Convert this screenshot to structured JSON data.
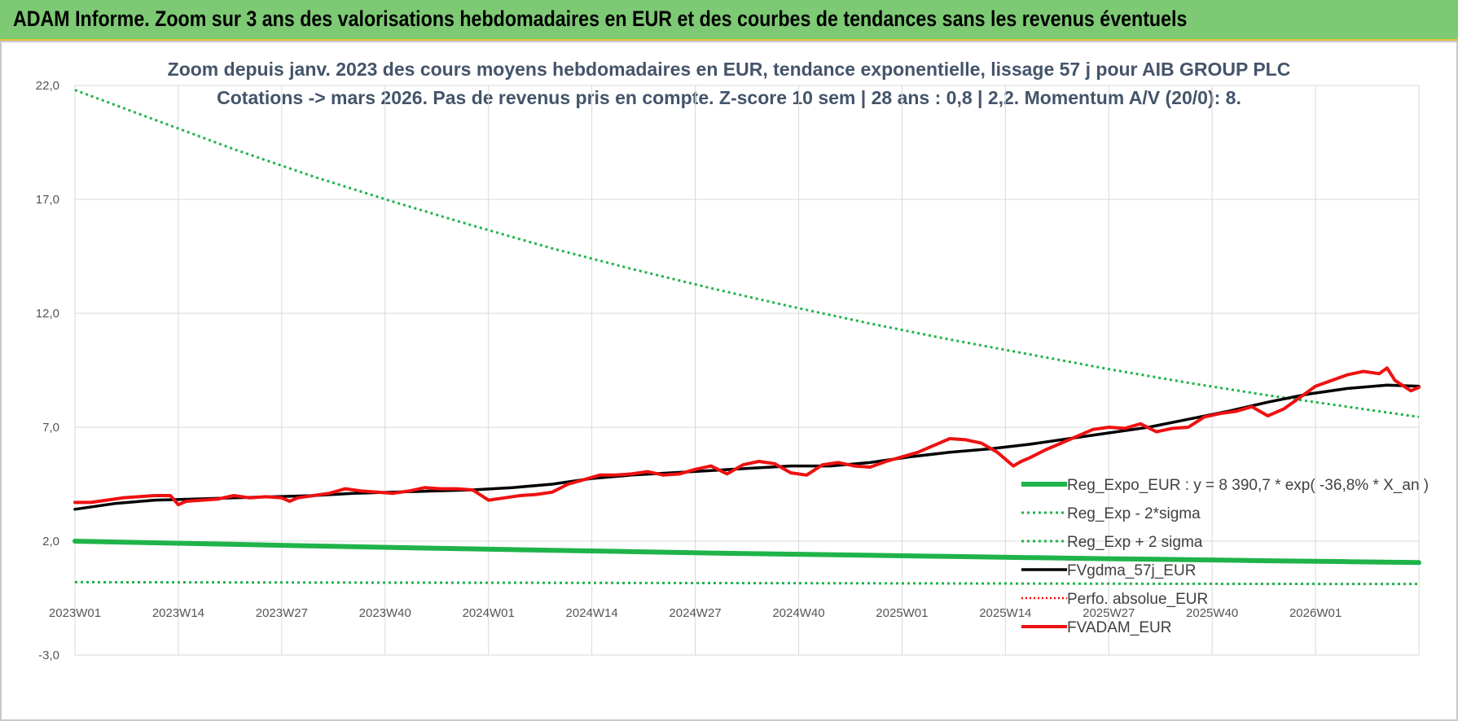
{
  "banner": {
    "title": "ADAM Informe. Zoom sur 3 ans des valorisations hebdomadaires en EUR et des courbes de tendances sans les revenus éventuels"
  },
  "colors": {
    "banner_bg": "#7dc974",
    "reg_expo": "#1fb34a",
    "sigma_bands": "#1fb34a",
    "fvgdma": "#000000",
    "perfo": "#ff0000",
    "fvadam": "#ee1111"
  },
  "chart_data": {
    "type": "line",
    "title": [
      "Zoom depuis janv. 2023 des cours moyens hebdomadaires en EUR, tendance exponentielle, lissage 57 j pour AIB GROUP PLC",
      "Cotations -> mars 2026. Pas de revenus pris en compte. Z-score 10 sem | 28 ans : 0,8 | 2,2. Momentum A/V (20/0): 8."
    ],
    "xlabel": "",
    "ylabel": "",
    "ylim": [
      -3,
      22
    ],
    "yticks": [
      22,
      17,
      12,
      7,
      2,
      -3
    ],
    "ytick_labels": [
      "22,0",
      "17,0",
      "12,0",
      "7,0",
      "2,0",
      "-3,0"
    ],
    "x_index_range": [
      0,
      169
    ],
    "xticks": [
      0,
      13,
      26,
      39,
      52,
      65,
      78,
      91,
      104,
      117,
      130,
      143,
      156
    ],
    "xtick_labels": [
      "2023W01",
      "2023W14",
      "2023W27",
      "2023W40",
      "2024W01",
      "2024W14",
      "2024W27",
      "2024W40",
      "2025W01",
      "2025W14",
      "2025W27",
      "2025W40",
      "2026W01"
    ],
    "gridlines": true,
    "legend_position": "right",
    "series": [
      {
        "name": "Reg_Expo_EUR : y = 8 390,7 * exp( -36,8% *  X_an )",
        "style": "solid-thick",
        "x": [
          0,
          10,
          20,
          30,
          40,
          50,
          60,
          70,
          80,
          90,
          100,
          110,
          120,
          130,
          140,
          150,
          160,
          169
        ],
        "values": [
          2.0,
          1.93,
          1.86,
          1.79,
          1.72,
          1.66,
          1.6,
          1.54,
          1.48,
          1.43,
          1.38,
          1.33,
          1.28,
          1.23,
          1.19,
          1.14,
          1.1,
          1.06
        ]
      },
      {
        "name": "Reg_Exp - 2*sigma",
        "style": "dotted",
        "x": [
          0,
          20,
          40,
          60,
          80,
          100,
          120,
          140,
          160,
          169
        ],
        "values": [
          0.2,
          0.19,
          0.18,
          0.17,
          0.16,
          0.15,
          0.14,
          0.13,
          0.12,
          0.12
        ]
      },
      {
        "name": "Reg_Exp + 2 sigma",
        "style": "dotted",
        "x": [
          0,
          10,
          20,
          30,
          40,
          50,
          60,
          70,
          80,
          90,
          100,
          110,
          120,
          130,
          140,
          150,
          160,
          169
        ],
        "values": [
          21.8,
          20.5,
          19.2,
          18.0,
          16.9,
          15.85,
          14.85,
          13.95,
          13.1,
          12.3,
          11.55,
          10.85,
          10.2,
          9.55,
          8.95,
          8.4,
          7.9,
          7.45
        ]
      },
      {
        "name": "FVgdma_57j_EUR",
        "style": "solid",
        "x": [
          0,
          5,
          10,
          15,
          20,
          25,
          30,
          35,
          40,
          45,
          50,
          55,
          60,
          65,
          70,
          75,
          80,
          85,
          90,
          95,
          100,
          105,
          110,
          115,
          120,
          125,
          130,
          135,
          140,
          145,
          150,
          155,
          160,
          165,
          169
        ],
        "values": [
          3.4,
          3.65,
          3.8,
          3.85,
          3.9,
          3.95,
          4.0,
          4.1,
          4.15,
          4.2,
          4.25,
          4.35,
          4.5,
          4.75,
          4.9,
          5.0,
          5.1,
          5.2,
          5.3,
          5.3,
          5.45,
          5.7,
          5.9,
          6.05,
          6.25,
          6.5,
          6.75,
          7.0,
          7.35,
          7.7,
          8.1,
          8.45,
          8.7,
          8.85,
          8.8
        ]
      },
      {
        "name": "Perfo. absolue_EUR",
        "style": "dotted",
        "x": [],
        "values": []
      },
      {
        "name": "FVADAM_EUR",
        "style": "solid-thick",
        "x": [
          0,
          2,
          4,
          6,
          8,
          10,
          12,
          13,
          14,
          16,
          18,
          20,
          22,
          24,
          26,
          27,
          28,
          30,
          32,
          34,
          36,
          38,
          40,
          42,
          44,
          46,
          48,
          50,
          52,
          54,
          56,
          58,
          60,
          62,
          64,
          66,
          68,
          70,
          72,
          74,
          76,
          78,
          80,
          82,
          84,
          86,
          88,
          90,
          92,
          94,
          96,
          98,
          100,
          102,
          104,
          106,
          108,
          110,
          112,
          114,
          116,
          118,
          119,
          120,
          122,
          124,
          126,
          128,
          130,
          132,
          134,
          136,
          138,
          140,
          142,
          144,
          146,
          148,
          150,
          152,
          154,
          156,
          158,
          160,
          162,
          164,
          165,
          166,
          168,
          169
        ],
        "values": [
          3.7,
          3.7,
          3.8,
          3.9,
          3.95,
          4.0,
          4.0,
          3.6,
          3.75,
          3.8,
          3.85,
          4.0,
          3.9,
          3.95,
          3.9,
          3.75,
          3.9,
          4.0,
          4.1,
          4.3,
          4.2,
          4.15,
          4.1,
          4.2,
          4.35,
          4.3,
          4.3,
          4.25,
          3.8,
          3.9,
          4.0,
          4.05,
          4.15,
          4.5,
          4.7,
          4.9,
          4.9,
          4.95,
          5.05,
          4.9,
          4.95,
          5.15,
          5.3,
          4.95,
          5.35,
          5.5,
          5.4,
          5.0,
          4.9,
          5.35,
          5.45,
          5.3,
          5.25,
          5.5,
          5.7,
          5.9,
          6.2,
          6.5,
          6.45,
          6.3,
          5.9,
          5.3,
          5.5,
          5.65,
          6.0,
          6.3,
          6.6,
          6.9,
          7.0,
          6.95,
          7.15,
          6.8,
          6.95,
          7.0,
          7.45,
          7.6,
          7.7,
          7.9,
          7.5,
          7.8,
          8.3,
          8.8,
          9.05,
          9.3,
          9.45,
          9.35,
          9.6,
          9.05,
          8.6,
          8.75
        ]
      }
    ]
  }
}
